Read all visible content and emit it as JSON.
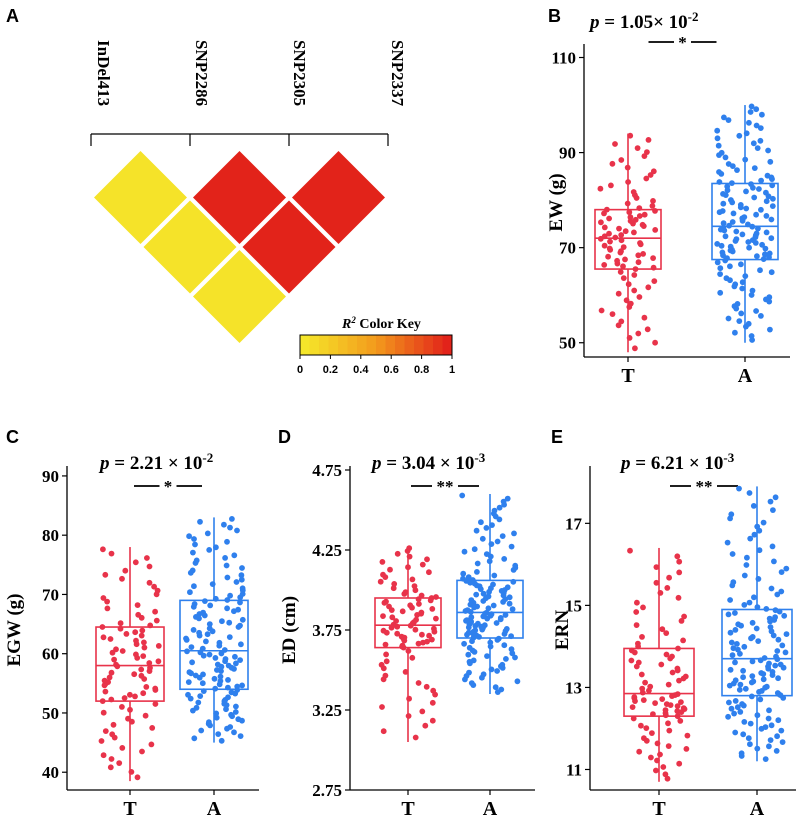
{
  "colors": {
    "T": "#e8334a",
    "A": "#2f80ed",
    "ld_low": "#f5e62a",
    "ld_high": "#e2231a"
  },
  "panel_a": {
    "label": "A",
    "markers": [
      "InDel413",
      "SNP2286",
      "SNP2305",
      "SNP2337"
    ],
    "r2": [
      {
        "pair": [
          "InDel413",
          "SNP2286"
        ],
        "r2": 0.02
      },
      {
        "pair": [
          "SNP2286",
          "SNP2305"
        ],
        "r2": 1.0
      },
      {
        "pair": [
          "SNP2305",
          "SNP2337"
        ],
        "r2": 1.0
      },
      {
        "pair": [
          "InDel413",
          "SNP2305"
        ],
        "r2": 0.02
      },
      {
        "pair": [
          "SNP2286",
          "SNP2337"
        ],
        "r2": 1.0
      },
      {
        "pair": [
          "InDel413",
          "SNP2337"
        ],
        "r2": 0.02
      }
    ],
    "color_key": {
      "title_main": "R",
      "title_sup": "2",
      "title_rest": " Color Key",
      "ticks": [
        "0",
        "0.2",
        "0.4",
        "0.6",
        "0.8",
        "1"
      ]
    }
  },
  "chart_data": [
    {
      "id": "B",
      "type": "box",
      "label": "B",
      "p_text": "1.05×",
      "p_exp": "-2",
      "p_base": "10",
      "sig": "*",
      "ylabel": "EW (g)",
      "yticks": [
        50,
        70,
        90,
        110
      ],
      "ylim": [
        47,
        112
      ],
      "categories": [
        "T",
        "A"
      ],
      "series": [
        {
          "name": "T",
          "min": 48,
          "q1": 65.5,
          "median": 72,
          "q3": 78,
          "max": 94,
          "n": 90
        },
        {
          "name": "A",
          "min": 50,
          "q1": 67.5,
          "median": 74.5,
          "q3": 83.5,
          "max": 100,
          "n": 140
        }
      ]
    },
    {
      "id": "C",
      "type": "box",
      "label": "C",
      "p_text": "2.21 ×",
      "p_exp": "-2",
      "p_base": "10",
      "sig": "*",
      "ylabel": "EGW (g)",
      "yticks": [
        40,
        50,
        60,
        70,
        80,
        90
      ],
      "ylim": [
        37,
        91
      ],
      "categories": [
        "T",
        "A"
      ],
      "series": [
        {
          "name": "T",
          "min": 38.5,
          "q1": 52,
          "median": 58,
          "q3": 64.5,
          "max": 78,
          "n": 90
        },
        {
          "name": "A",
          "min": 45,
          "q1": 54,
          "median": 60.5,
          "q3": 69,
          "max": 83,
          "n": 140
        }
      ]
    },
    {
      "id": "D",
      "type": "box",
      "label": "D",
      "p_text": "3.04 ×",
      "p_exp": "-3",
      "p_base": "10",
      "sig": "**",
      "ylabel": "ED (cm)",
      "yticks": [
        "2.75",
        "3.25",
        "3.75",
        "4.25",
        "4.75"
      ],
      "ylim": [
        2.75,
        4.75
      ],
      "categories": [
        "T",
        "A"
      ],
      "series": [
        {
          "name": "T",
          "min": 3.05,
          "q1": 3.64,
          "median": 3.78,
          "q3": 3.95,
          "max": 4.27,
          "n": 90
        },
        {
          "name": "A",
          "min": 3.35,
          "q1": 3.7,
          "median": 3.86,
          "q3": 4.06,
          "max": 4.6,
          "n": 140
        }
      ]
    },
    {
      "id": "E",
      "type": "box",
      "label": "E",
      "p_text": "6.21 ×",
      "p_exp": "-3",
      "p_base": "10",
      "sig": "**",
      "ylabel": "ERN",
      "yticks": [
        11,
        13,
        15,
        17
      ],
      "ylim": [
        10.5,
        18.3
      ],
      "categories": [
        "T",
        "A"
      ],
      "series": [
        {
          "name": "T",
          "min": 10.7,
          "q1": 12.3,
          "median": 12.85,
          "q3": 13.95,
          "max": 16.4,
          "n": 90
        },
        {
          "name": "A",
          "min": 11.2,
          "q1": 12.8,
          "median": 13.7,
          "q3": 14.9,
          "max": 17.9,
          "n": 140
        }
      ]
    }
  ]
}
